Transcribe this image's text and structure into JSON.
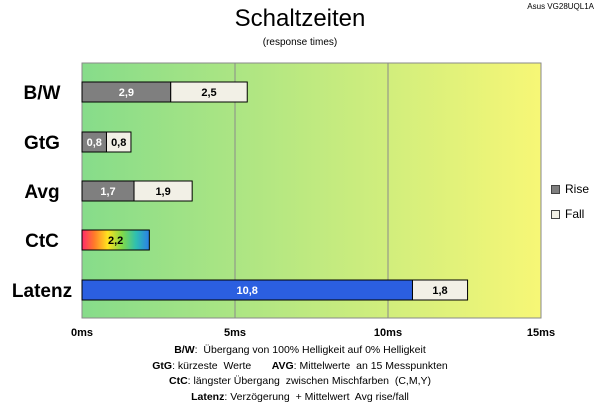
{
  "header": {
    "title": "Schaltzeiten",
    "subtitle": "(response times)",
    "model": "Asus VG28UQL1A"
  },
  "colors": {
    "rise": "#7f7f7f",
    "fall": "#f2f0e6",
    "latenz": "#2b5fe0",
    "gradient_start": "#86dc8a",
    "gradient_end": "#f7f776"
  },
  "chart_data": {
    "type": "bar",
    "orientation": "horizontal",
    "stacked": true,
    "categories": [
      "B/W",
      "GtG",
      "Avg",
      "CtC",
      "Latenz"
    ],
    "series": [
      {
        "name": "Rise",
        "values": [
          2.9,
          0.8,
          1.7,
          2.2,
          10.8
        ],
        "labels": [
          "2,9",
          "0,8",
          "1,7",
          "2,2",
          "10,8"
        ]
      },
      {
        "name": "Fall",
        "values": [
          2.5,
          0.8,
          1.9,
          null,
          1.8
        ],
        "labels": [
          "2,5",
          "0,8",
          "1,9",
          null,
          "1,8"
        ]
      }
    ],
    "xlim": [
      0,
      15
    ],
    "xticks": [
      0,
      5,
      10,
      15
    ],
    "xtick_labels": [
      "0ms",
      "5ms",
      "10ms",
      "15ms"
    ],
    "grid": true,
    "legend_position": "right"
  },
  "legend": {
    "rise_label": "Rise",
    "fall_label": "Fall"
  },
  "notes": {
    "bw_key": "B/W",
    "bw_text": ":  Übergang von 100% Helligkeit auf 0% Helligkeit",
    "gtg_key": "GtG",
    "gtg_text": ": kürzeste  Werte       ",
    "avg_key": "AVG",
    "avg_text": ": Mittelwerte  an 15 Messpunkten",
    "ctc_key": "CtC",
    "ctc_text": ": längster Übergang  zwischen Mischfarben  (C,M,Y)",
    "lat_key": "Latenz",
    "lat_text": ": Verzögerung  + Mittelwert  Avg rise/fall"
  }
}
